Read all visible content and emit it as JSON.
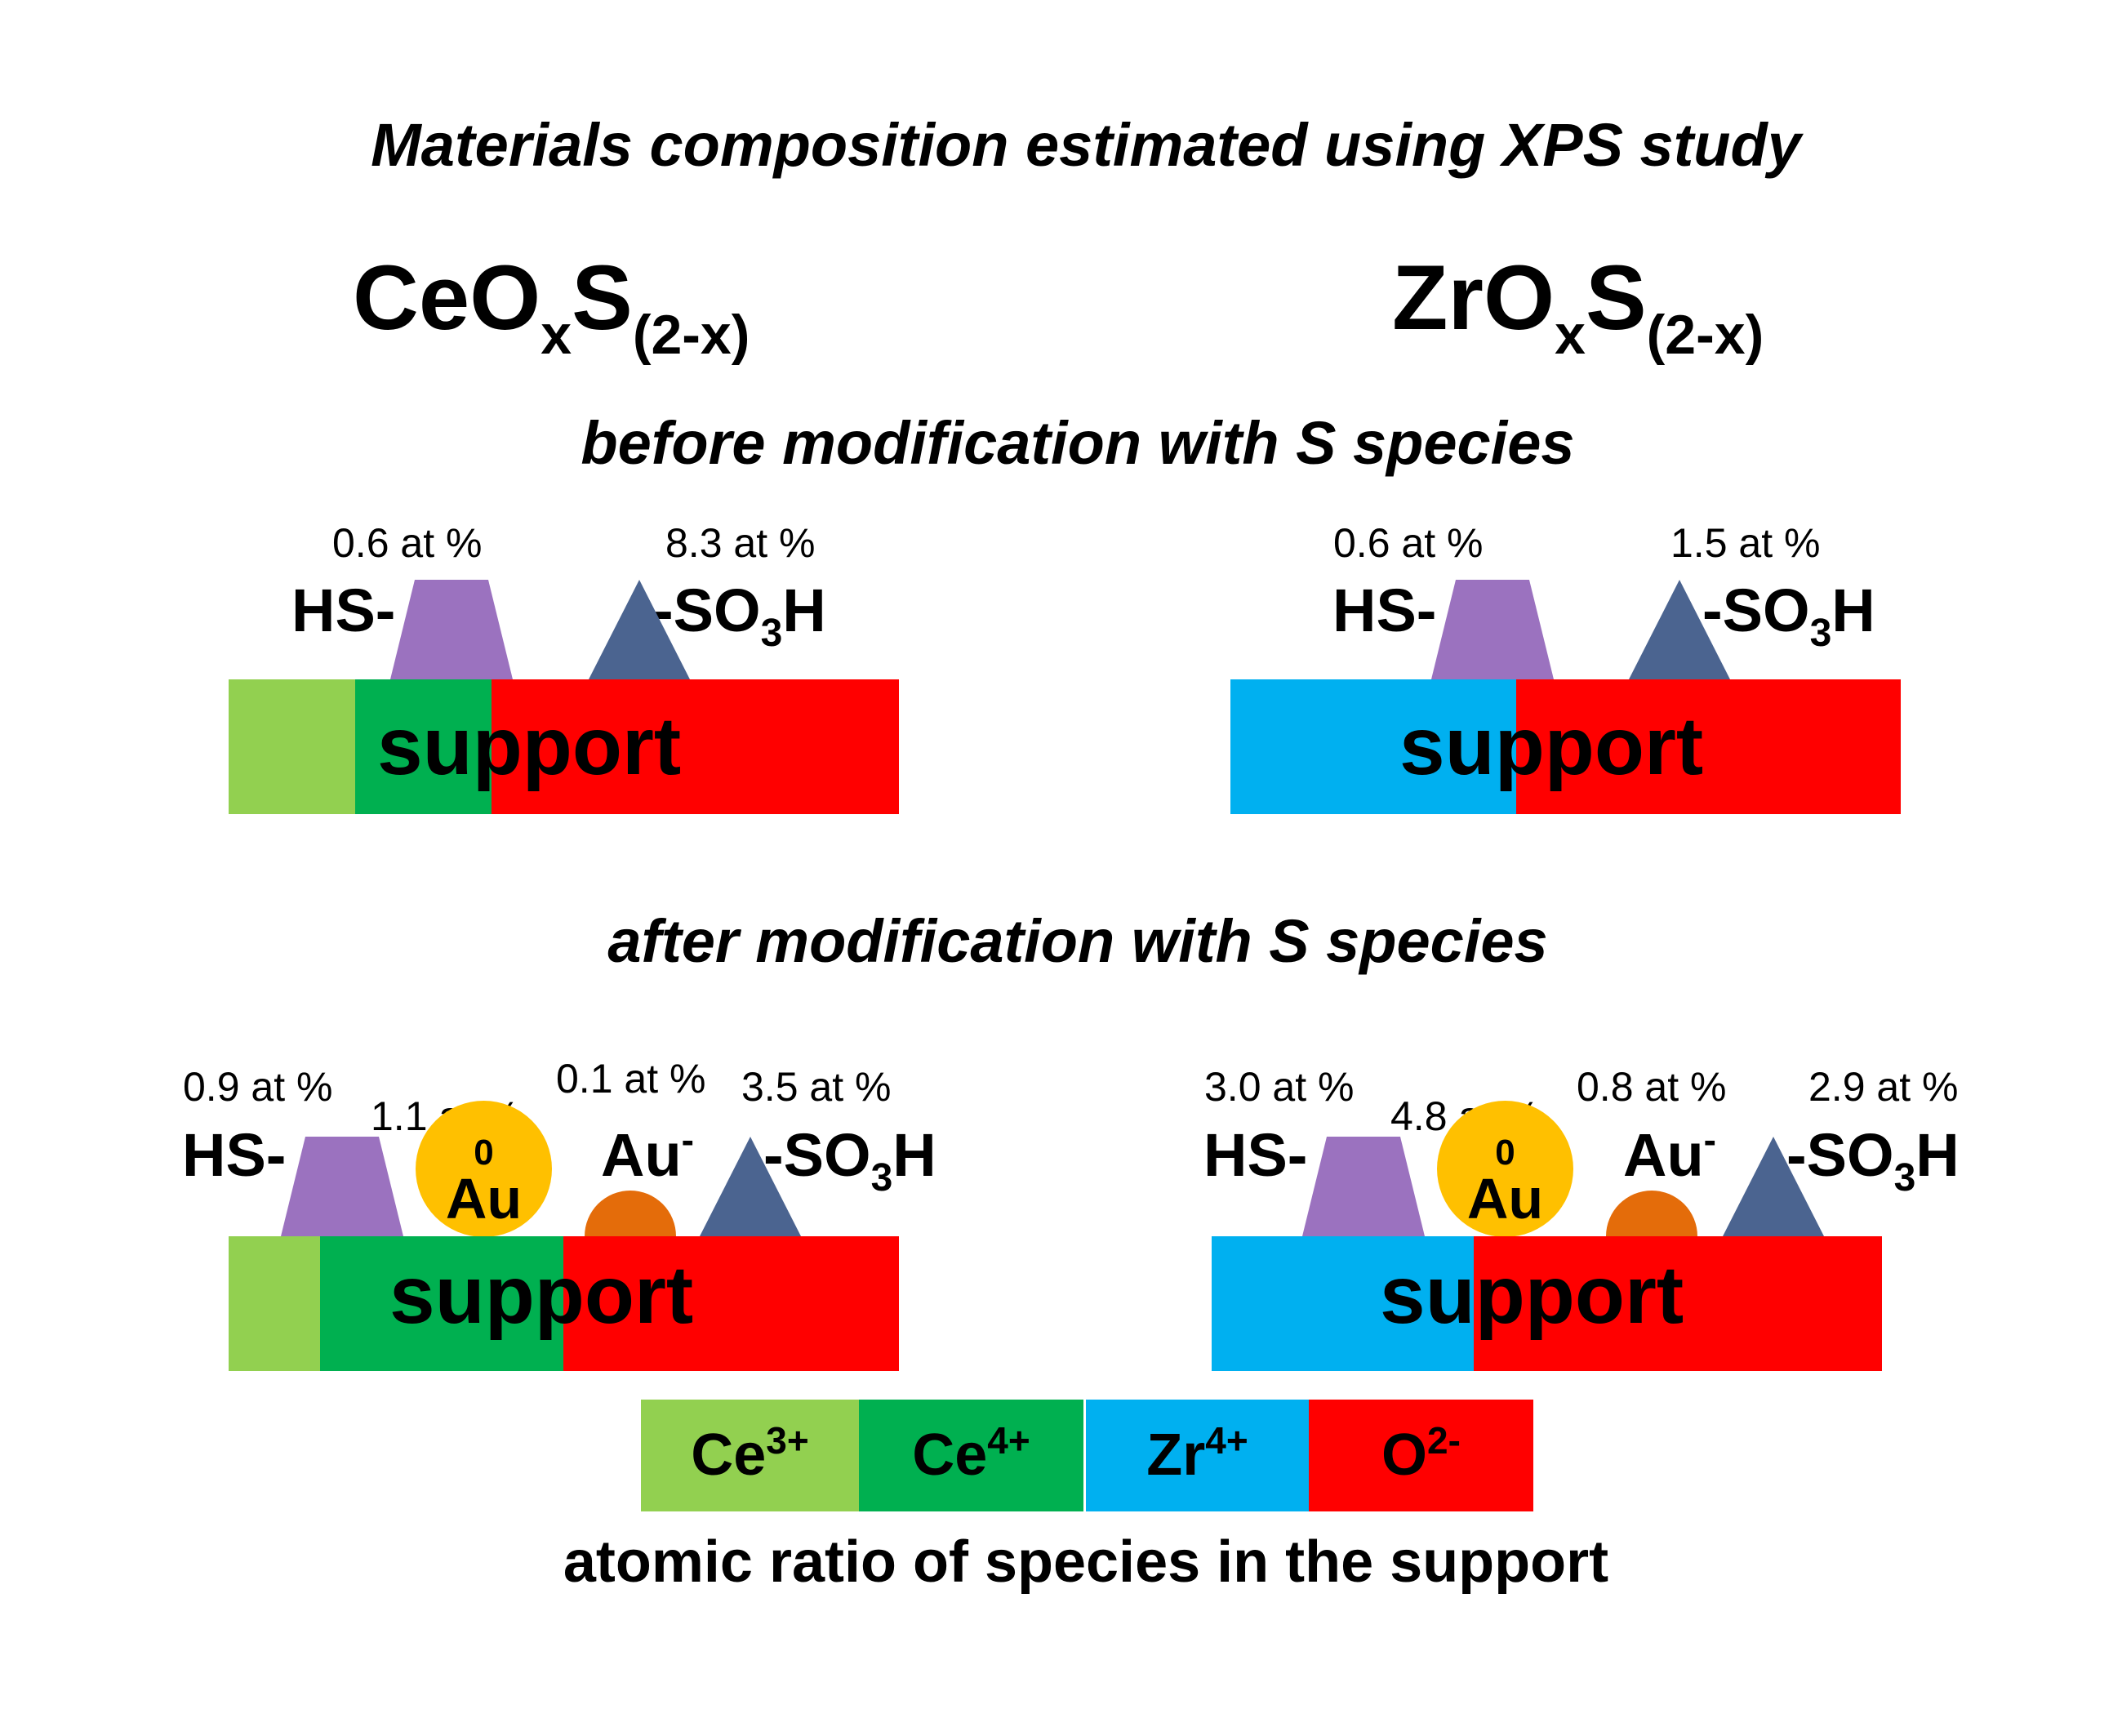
{
  "title": "Materials composition estimated using XPS study",
  "formulas": {
    "left": {
      "base": "CeO",
      "x": "x",
      "s": "S",
      "sub": "(2-x)"
    },
    "right": {
      "base": "ZrO",
      "x": "x",
      "s": "S",
      "sub": "(2-x)"
    }
  },
  "sections": {
    "before": "before modification with S species",
    "after": "after modification with S species"
  },
  "labels": {
    "hs": "HS-",
    "so3h_pre": "-SO",
    "so3h_sub": "3",
    "so3h_post": "H",
    "au": "Au",
    "au0_sup": "0",
    "auneg_sup": "-",
    "support": "support"
  },
  "before": {
    "ceo": {
      "hs_pct": "0.6 at %",
      "so3h_pct": "8.3 at %"
    },
    "zro": {
      "hs_pct": "0.6 at %",
      "so3h_pct": "1.5 at %"
    }
  },
  "after": {
    "ceo": {
      "hs_pct": "0.9 at %",
      "au0_pct": "1.1 at %",
      "auneg_pct": "0.1 at %",
      "so3h_pct": "3.5 at %"
    },
    "zro": {
      "hs_pct": "3.0 at %",
      "au0_pct": "4.8 at %",
      "auneg_pct": "0.8 at %",
      "so3h_pct": "2.9 at %"
    }
  },
  "legend": {
    "items": [
      {
        "base": "Ce",
        "sup": "3+",
        "color": "#92d050"
      },
      {
        "base": "Ce",
        "sup": "4+",
        "color": "#00b050"
      },
      {
        "base": "Zr",
        "sup": "4+",
        "color": "#00b0f0"
      },
      {
        "base": "O",
        "sup": "2-",
        "color": "#ff0000"
      }
    ],
    "caption": "atomic ratio of species in the support"
  }
}
